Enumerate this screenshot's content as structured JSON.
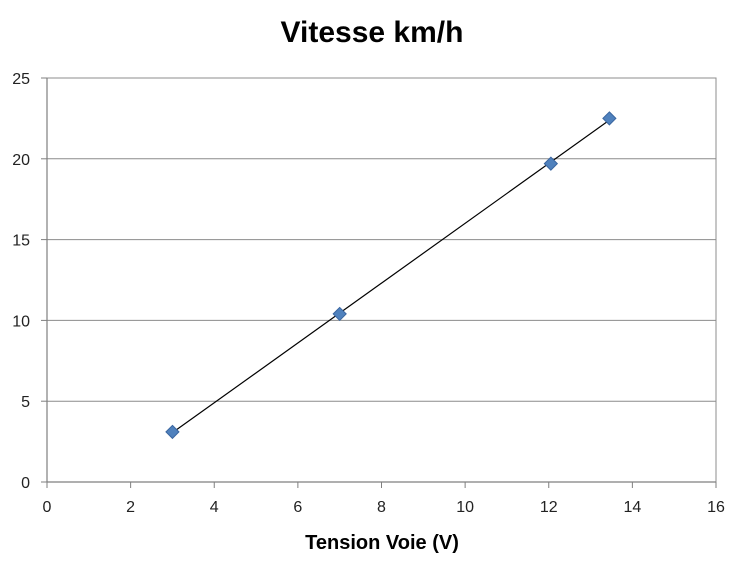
{
  "chart_data": {
    "type": "scatter",
    "title": "Vitesse km/h",
    "xlabel": "Tension Voie (V)",
    "ylabel": "",
    "xlim": [
      0,
      16
    ],
    "ylim": [
      0,
      25
    ],
    "xticks": [
      0,
      2,
      4,
      6,
      8,
      10,
      12,
      14,
      16
    ],
    "yticks": [
      0,
      5,
      10,
      15,
      20,
      25
    ],
    "grid": "horizontal",
    "legend": "none",
    "series": [
      {
        "color": "#4f81bd",
        "marker": "diamond",
        "points": [
          {
            "x": 3.0,
            "y": 3.1
          },
          {
            "x": 7.0,
            "y": 10.4
          },
          {
            "x": 12.05,
            "y": 19.7
          },
          {
            "x": 13.45,
            "y": 22.5
          }
        ],
        "trendline": {
          "type": "linear",
          "x_start": 3.0,
          "x_end": 13.45
        }
      }
    ]
  }
}
